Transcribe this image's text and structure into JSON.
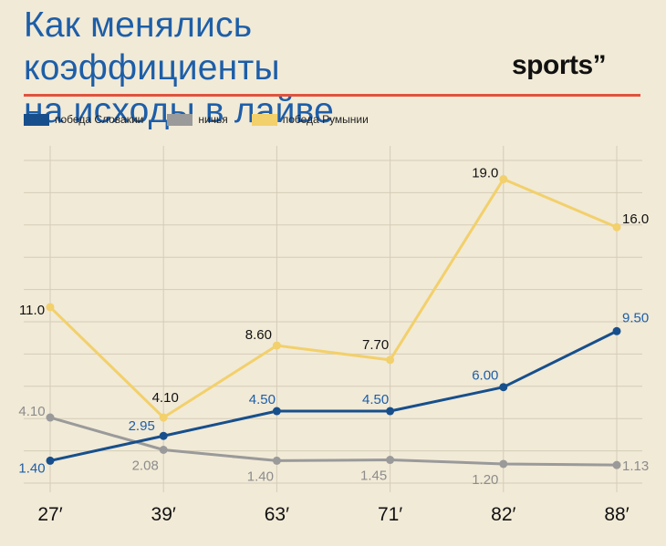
{
  "header": {
    "title_line1": "Как менялись коэффициенты",
    "title_line2": "на исходы в лайве",
    "logo_text": "sports”"
  },
  "colors": {
    "accent_rule": "#e0533d",
    "title": "#1d5ea8"
  },
  "chart_data": {
    "type": "line",
    "categories": [
      "27′",
      "39′",
      "63′",
      "71′",
      "82′",
      "88′"
    ],
    "ylim": [
      0,
      21
    ],
    "grid": true,
    "legend": "top-left",
    "series": [
      {
        "name": "победа Словакии",
        "color": "#174f8c",
        "label_color": "#1d5ea8",
        "values": [
          1.4,
          2.95,
          4.5,
          4.5,
          6.0,
          9.5
        ],
        "labels": [
          "1.40",
          "2.95",
          "4.50",
          "4.50",
          "6.00",
          "9.50"
        ]
      },
      {
        "name": "ничья",
        "color": "#9a9a9a",
        "label_color": "#8c8c8c",
        "values": [
          4.1,
          2.08,
          1.4,
          1.45,
          1.2,
          1.13
        ],
        "labels": [
          "4.10",
          "2.08",
          "1.40",
          "1.45",
          "1.20",
          "1.13"
        ]
      },
      {
        "name": "победа Румынии",
        "color": "#f2d06b",
        "label_color": "#111111",
        "values": [
          11.0,
          4.1,
          8.6,
          7.7,
          19.0,
          16.0
        ],
        "labels": [
          "11.0",
          "4.10",
          "8.60",
          "7.70",
          "19.0",
          "16.0"
        ]
      }
    ]
  }
}
